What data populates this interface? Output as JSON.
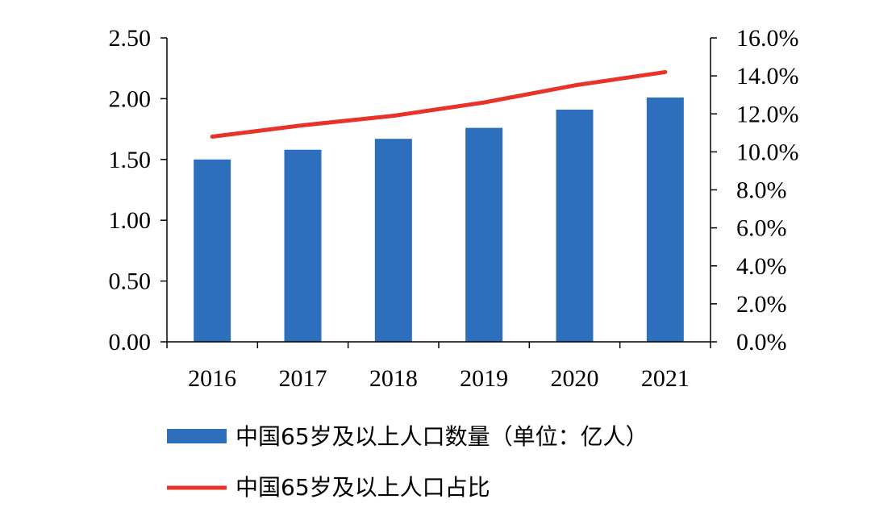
{
  "chart_data": {
    "type": "bar",
    "categories": [
      "2016",
      "2017",
      "2018",
      "2019",
      "2020",
      "2021"
    ],
    "series": [
      {
        "name": "中国65岁及以上人口数量（单位：亿人）",
        "type": "bar",
        "axis": "left",
        "color": "#2e6fbd",
        "values": [
          1.5,
          1.58,
          1.67,
          1.76,
          1.91,
          2.01
        ]
      },
      {
        "name": "中国65岁及以上人口占比",
        "type": "line",
        "axis": "right",
        "color": "#e8332b",
        "values": [
          0.108,
          0.114,
          0.119,
          0.126,
          0.135,
          0.142
        ]
      }
    ],
    "y_left": {
      "lim": [
        0,
        2.5
      ],
      "ticks": [
        0,
        0.5,
        1.0,
        1.5,
        2.0,
        2.5
      ],
      "tick_labels": [
        "0.00",
        "0.50",
        "1.00",
        "1.50",
        "2.00",
        "2.50"
      ]
    },
    "y_right": {
      "lim": [
        0,
        0.16
      ],
      "ticks": [
        0,
        0.02,
        0.04,
        0.06,
        0.08,
        0.1,
        0.12,
        0.14,
        0.16
      ],
      "tick_labels": [
        "0.0%",
        "2.0%",
        "4.0%",
        "6.0%",
        "8.0%",
        "10.0%",
        "12.0%",
        "14.0%",
        "16.0%"
      ]
    },
    "legend_position": "bottom",
    "grid": false
  }
}
